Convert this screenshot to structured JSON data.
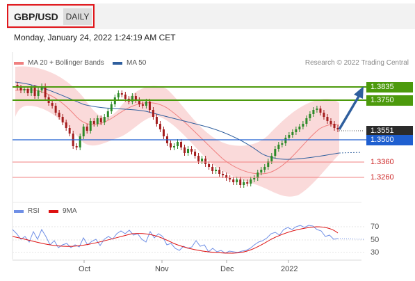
{
  "header": {
    "symbol": "GBP/USD",
    "period": "DAILY"
  },
  "datetime": "Monday, January 24, 2022 1:24:19 AM CET",
  "legend": {
    "items": [
      {
        "label": "MA 20 + Bollinger Bands",
        "color": "#f08080"
      },
      {
        "label": "MA 50",
        "color": "#2f5f9e"
      }
    ],
    "research": "Research © 2022 Trading Central"
  },
  "levels": {
    "r2": "1.3835",
    "r1": "1.3750",
    "last": "1.3551",
    "pivot": "1.3500",
    "s1": "1.3360",
    "s2": "1.3260"
  },
  "rsi_legend": {
    "items": [
      {
        "label": "RSI",
        "color": "#6f8fe6"
      },
      {
        "label": "9MA",
        "color": "#dd1111"
      }
    ]
  },
  "rsi_ticks": [
    "70",
    "50",
    "30"
  ],
  "months": [
    "Oct",
    "Nov",
    "Dec",
    "2022"
  ],
  "colors": {
    "green": "#4c9a0c",
    "blue": "#1f5fd0",
    "last": "#2b2b2b",
    "candle_up": "#2c8a28",
    "candle_down": "#a31d1d",
    "band": "#f9d3d3"
  }
}
